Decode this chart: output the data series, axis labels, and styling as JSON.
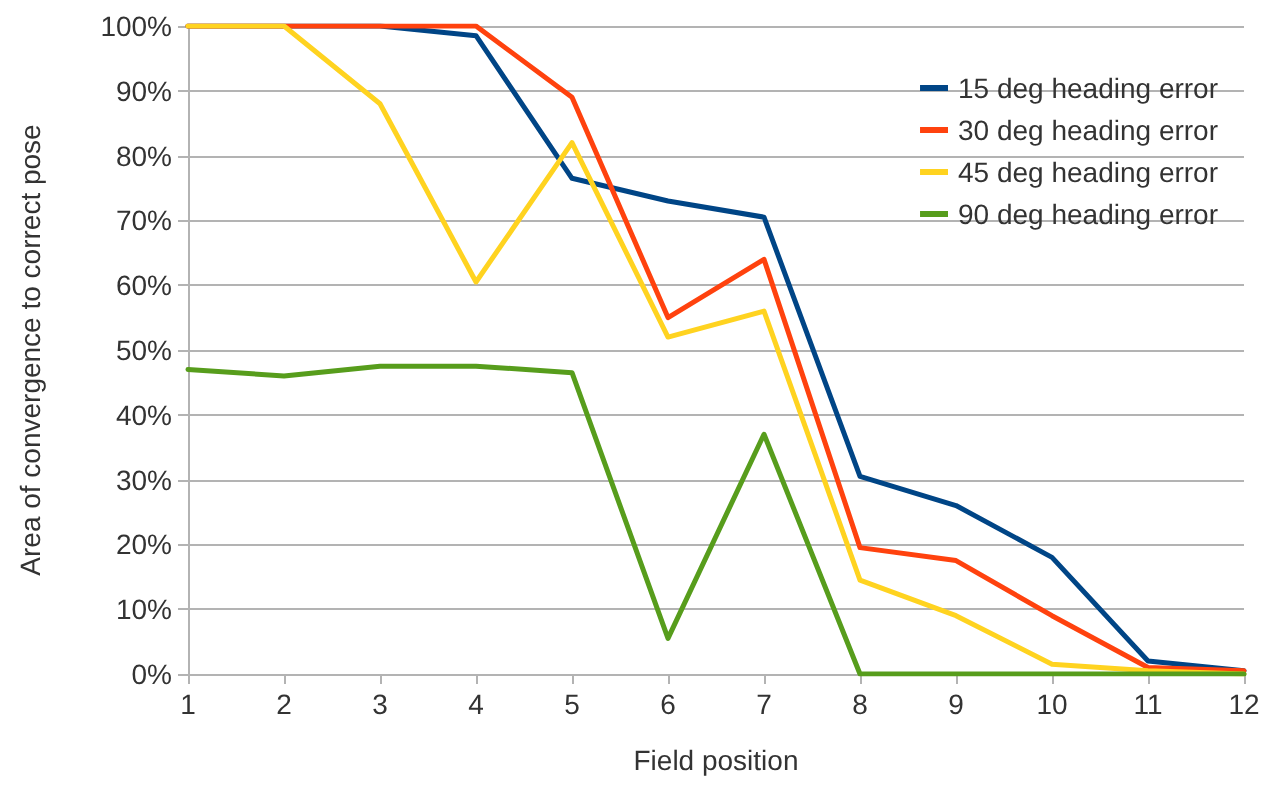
{
  "chart_data": {
    "type": "line",
    "xlabel": "Field position",
    "ylabel": "Area of convergence to correct pose",
    "x": [
      1,
      2,
      3,
      4,
      5,
      6,
      7,
      8,
      9,
      10,
      11,
      12
    ],
    "xlim": [
      1,
      12
    ],
    "xticks": [
      1,
      2,
      3,
      4,
      5,
      6,
      7,
      8,
      9,
      10,
      11,
      12
    ],
    "series": [
      {
        "name": "15 deg heading error",
        "color": "#004586",
        "values": [
          100,
          100,
          100,
          98.5,
          76.5,
          73,
          70.5,
          30.5,
          26,
          18,
          2,
          0.5
        ]
      },
      {
        "name": "30 deg heading error",
        "color": "#ff420e",
        "values": [
          100,
          100,
          100,
          100,
          89,
          55,
          64,
          19.5,
          17.5,
          9,
          1,
          0.5
        ]
      },
      {
        "name": "45 deg heading error",
        "color": "#ffd320",
        "values": [
          100,
          100,
          88,
          60.5,
          82,
          52,
          56,
          14.5,
          9,
          1.5,
          0.5,
          0
        ]
      },
      {
        "name": "90 deg heading error",
        "color": "#579d1c",
        "values": [
          47,
          46,
          47.5,
          47.5,
          46.5,
          5.5,
          37,
          0,
          0,
          0,
          0,
          0
        ]
      }
    ],
    "ylim": [
      0,
      100
    ],
    "yticks": [
      {
        "value": 0,
        "label": "0%"
      },
      {
        "value": 10,
        "label": "10%"
      },
      {
        "value": 20,
        "label": "20%"
      },
      {
        "value": 30,
        "label": "30%"
      },
      {
        "value": 40,
        "label": "40%"
      },
      {
        "value": 50,
        "label": "50%"
      },
      {
        "value": 60,
        "label": "60%"
      },
      {
        "value": 70,
        "label": "70%"
      },
      {
        "value": 80,
        "label": "80%"
      },
      {
        "value": 90,
        "label": "90%"
      },
      {
        "value": 100,
        "label": "100%"
      }
    ],
    "grid": "y",
    "legend": "top right",
    "marker": "none",
    "line_style": "solid"
  }
}
